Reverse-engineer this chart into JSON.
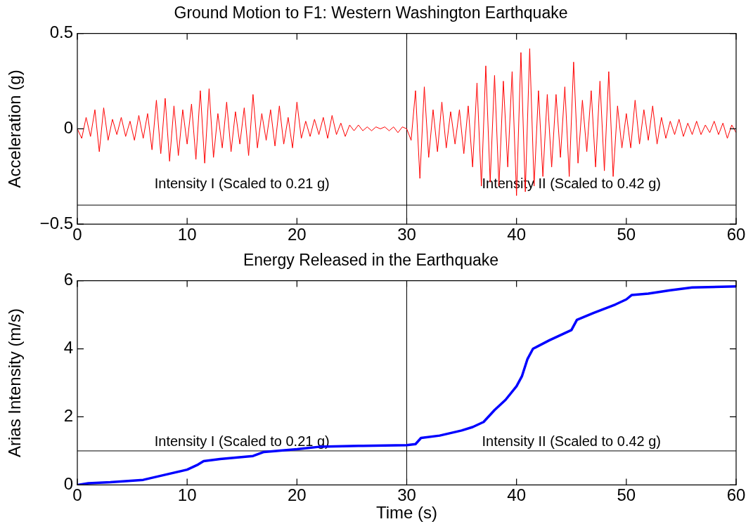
{
  "chart_data": [
    {
      "type": "line",
      "title": "Ground Motion to F1: Western Washington Earthquake",
      "ylabel": "Acceleration (g)",
      "xlim": [
        0,
        60
      ],
      "xticks": [
        0,
        10,
        20,
        30,
        40,
        50,
        60
      ],
      "ylim": [
        -0.5,
        0.5
      ],
      "yticks": [
        {
          "value": -0.5,
          "label": "−0.5"
        },
        0,
        0.5
      ],
      "grid": false,
      "legend": false,
      "marker": "none",
      "line_style": "solid",
      "series": [
        {
          "color": "#ff0000",
          "x": [
            0,
            0.4,
            0.8,
            1.2,
            1.6,
            2,
            2.4,
            2.8,
            3.2,
            3.6,
            4,
            4.4,
            4.8,
            5.2,
            5.6,
            6,
            6.4,
            6.8,
            7.2,
            7.6,
            8,
            8.4,
            8.8,
            9.2,
            9.6,
            10,
            10.4,
            10.8,
            11.2,
            11.6,
            12,
            12.4,
            12.8,
            13.2,
            13.6,
            14,
            14.4,
            14.8,
            15.2,
            15.6,
            16,
            16.4,
            16.8,
            17.2,
            17.6,
            18,
            18.4,
            18.8,
            19.2,
            19.6,
            20,
            20.4,
            20.8,
            21.2,
            21.6,
            22,
            22.4,
            22.8,
            23.2,
            23.6,
            24,
            24.4,
            24.8,
            25.2,
            25.6,
            26,
            26.4,
            26.8,
            27.2,
            27.6,
            28,
            28.4,
            28.8,
            29.2,
            29.6,
            30,
            30.4,
            30.8,
            31.2,
            31.6,
            32,
            32.4,
            32.8,
            33.2,
            33.6,
            34,
            34.4,
            34.8,
            35.2,
            35.6,
            36,
            36.4,
            36.8,
            37.2,
            37.6,
            38,
            38.4,
            38.8,
            39.2,
            39.6,
            40,
            40.4,
            40.8,
            41.2,
            41.6,
            42,
            42.4,
            42.8,
            43.2,
            43.6,
            44,
            44.4,
            44.8,
            45.2,
            45.6,
            46,
            46.4,
            46.8,
            47.2,
            47.6,
            48,
            48.4,
            48.8,
            49.2,
            49.6,
            50,
            50.4,
            50.8,
            51.2,
            51.6,
            52,
            52.4,
            52.8,
            53.2,
            53.6,
            54,
            54.4,
            54.8,
            55.2,
            55.6,
            56,
            56.4,
            56.8,
            57.2,
            57.6,
            58,
            58.4,
            58.8,
            59.2,
            59.6,
            60
          ],
          "values": [
            0,
            -0.05,
            0.06,
            -0.04,
            0.1,
            -0.12,
            0.11,
            -0.06,
            0.05,
            -0.03,
            0.06,
            -0.04,
            0.04,
            -0.06,
            0.07,
            -0.05,
            0.08,
            -0.11,
            0.15,
            -0.13,
            0.16,
            -0.17,
            0.12,
            -0.14,
            0.1,
            -0.08,
            0.13,
            -0.16,
            0.2,
            -0.18,
            0.21,
            -0.15,
            0.08,
            -0.1,
            0.14,
            -0.12,
            0.09,
            -0.08,
            0.11,
            -0.14,
            0.18,
            -0.1,
            0.08,
            -0.06,
            0.1,
            -0.09,
            0.12,
            -0.08,
            0.06,
            -0.1,
            0.14,
            -0.05,
            0.04,
            -0.04,
            0.05,
            -0.03,
            0.06,
            -0.05,
            0.07,
            -0.03,
            0.03,
            -0.04,
            0.02,
            -0.01,
            0.02,
            -0.01,
            0.01,
            -0.01,
            0.01,
            0,
            0.01,
            -0.01,
            0.01,
            -0.02,
            0.01,
            0,
            -0.06,
            0.2,
            -0.26,
            0.22,
            -0.15,
            0.1,
            -0.12,
            0.14,
            -0.1,
            0.09,
            -0.08,
            0.1,
            -0.13,
            0.12,
            -0.2,
            0.24,
            -0.3,
            0.33,
            -0.28,
            0.28,
            -0.3,
            0.25,
            -0.2,
            0.3,
            -0.35,
            0.4,
            -0.33,
            0.42,
            -0.3,
            0.2,
            -0.25,
            0.18,
            -0.2,
            0.18,
            -0.15,
            0.22,
            -0.25,
            0.35,
            -0.18,
            0.15,
            -0.12,
            0.2,
            -0.2,
            0.25,
            -0.22,
            0.3,
            -0.25,
            0.12,
            -0.1,
            0.08,
            -0.1,
            0.15,
            -0.08,
            0.1,
            -0.06,
            0.12,
            -0.08,
            0.06,
            -0.05,
            0.04,
            -0.03,
            0.05,
            -0.04,
            0.03,
            -0.03,
            0.04,
            -0.03,
            0.02,
            -0.02,
            0.04,
            -0.03,
            0.03,
            -0.05,
            0.02,
            -0.02
          ]
        }
      ],
      "ref_lines": [
        {
          "axis": "x",
          "value": 30,
          "color": "#000000"
        },
        {
          "axis": "y",
          "value": -0.4,
          "color": "#000000"
        }
      ],
      "annotations": [
        "Intensity I (Scaled to 0.21 g)",
        "Intensity II (Scaled to 0.42 g)"
      ]
    },
    {
      "type": "line",
      "title": "Energy Released in the Earthquake",
      "xlabel": "Time (s)",
      "ylabel": "Arias Intensity (m/s)",
      "xlim": [
        0,
        60
      ],
      "xticks": [
        0,
        10,
        20,
        30,
        40,
        50,
        60
      ],
      "ylim": [
        0,
        6
      ],
      "yticks": [
        0,
        2,
        4,
        6
      ],
      "grid": false,
      "legend": false,
      "marker": "none",
      "line_style": "solid",
      "series": [
        {
          "color": "#0000ff",
          "x": [
            0,
            1,
            3,
            6,
            8,
            10,
            11,
            11.5,
            13,
            16,
            17,
            20,
            22,
            26,
            30,
            30.8,
            31.3,
            33,
            35,
            36,
            37,
            38,
            39,
            40,
            40.5,
            41,
            41.5,
            43,
            45,
            45.5,
            47,
            49,
            50,
            50.5,
            52,
            54,
            56,
            60
          ],
          "values": [
            0,
            0.05,
            0.08,
            0.15,
            0.3,
            0.45,
            0.6,
            0.7,
            0.76,
            0.85,
            0.97,
            1.05,
            1.12,
            1.15,
            1.17,
            1.2,
            1.38,
            1.45,
            1.6,
            1.7,
            1.85,
            2.2,
            2.5,
            2.9,
            3.2,
            3.7,
            4.0,
            4.25,
            4.55,
            4.85,
            5.05,
            5.3,
            5.45,
            5.58,
            5.62,
            5.72,
            5.8,
            5.83
          ]
        }
      ],
      "ref_lines": [
        {
          "axis": "x",
          "value": 30,
          "color": "#000000"
        },
        {
          "axis": "y",
          "value": 1,
          "color": "#000000"
        }
      ],
      "annotations": [
        "Intensity I (Scaled to 0.21 g)",
        "Intensity II (Scaled to 0.42 g)"
      ]
    }
  ]
}
